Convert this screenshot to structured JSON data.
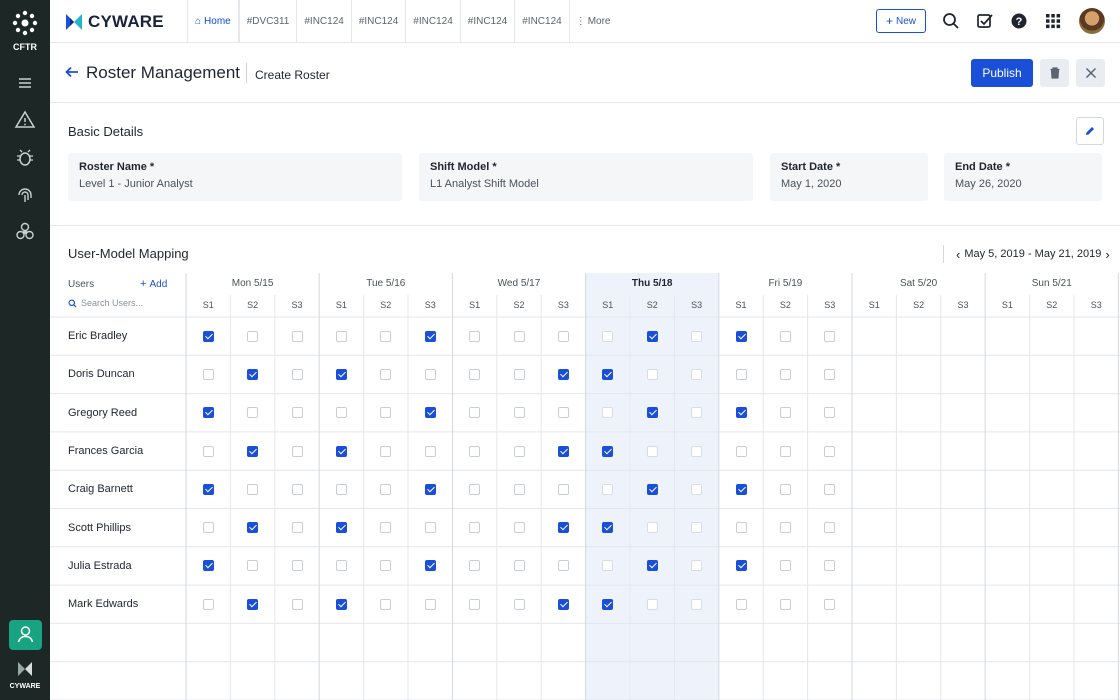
{
  "rail": {
    "org_label": "CFTR",
    "brand_label": "CYWARE",
    "icons": [
      "menu-icon",
      "alert-icon",
      "bug-icon",
      "fingerprint-icon",
      "biohazard-icon",
      "user-icon"
    ]
  },
  "topbar": {
    "brand": "CYWARE",
    "tabs": [
      {
        "label": "Home",
        "active": true
      },
      {
        "label": "#DVC311",
        "active": false
      },
      {
        "label": "#INC124",
        "active": false
      },
      {
        "label": "#INC124",
        "active": false
      },
      {
        "label": "#INC124",
        "active": false
      },
      {
        "label": "#INC124",
        "active": false
      },
      {
        "label": "#INC124",
        "active": false
      }
    ],
    "more_label": "More",
    "new_label": "New"
  },
  "header": {
    "title": "Roster Management",
    "subtitle": "Create Roster",
    "publish_label": "Publish"
  },
  "basic_details": {
    "title": "Basic Details",
    "fields": [
      {
        "label": "Roster Name *",
        "value": "Level 1 - Junior Analyst"
      },
      {
        "label": "Shift Model *",
        "value": "L1 Analyst Shift Model"
      },
      {
        "label": "Start Date *",
        "value": "May 1, 2020"
      },
      {
        "label": "End Date *",
        "value": "May 26, 2020"
      }
    ]
  },
  "mapping": {
    "title": "User-Model Mapping",
    "range": "May 5, 2019 - May 21, 2019",
    "users_label": "Users",
    "add_label": "Add",
    "search_placeholder": "Search Users...",
    "shifts": [
      "S1",
      "S2",
      "S3"
    ],
    "days": [
      {
        "label": "Mon 5/15",
        "today": false
      },
      {
        "label": "Tue 5/16",
        "today": false
      },
      {
        "label": "Wed 5/17",
        "today": false
      },
      {
        "label": "Thu 5/18",
        "today": true
      },
      {
        "label": "Fri 5/19",
        "today": false
      },
      {
        "label": "Sat 5/20",
        "today": false
      },
      {
        "label": "Sun 5/21",
        "today": false
      }
    ],
    "users": [
      {
        "name": "Eric Bradley",
        "checks": [
          1,
          0,
          0,
          0,
          0,
          1,
          0,
          0,
          0,
          0,
          1,
          0,
          1,
          0,
          0
        ]
      },
      {
        "name": "Doris Duncan",
        "checks": [
          0,
          1,
          0,
          1,
          0,
          0,
          0,
          0,
          1,
          1,
          0,
          0,
          0,
          0,
          0
        ]
      },
      {
        "name": "Gregory Reed",
        "checks": [
          1,
          0,
          0,
          0,
          0,
          1,
          0,
          0,
          0,
          0,
          1,
          0,
          1,
          0,
          0
        ]
      },
      {
        "name": "Frances Garcia",
        "checks": [
          0,
          1,
          0,
          1,
          0,
          0,
          0,
          0,
          1,
          1,
          0,
          0,
          0,
          0,
          0
        ]
      },
      {
        "name": "Craig Barnett",
        "checks": [
          1,
          0,
          0,
          0,
          0,
          1,
          0,
          0,
          0,
          0,
          1,
          0,
          1,
          0,
          0
        ]
      },
      {
        "name": "Scott Phillips",
        "checks": [
          0,
          1,
          0,
          1,
          0,
          0,
          0,
          0,
          1,
          1,
          0,
          0,
          0,
          0,
          0
        ]
      },
      {
        "name": "Julia Estrada",
        "checks": [
          1,
          0,
          0,
          0,
          0,
          1,
          0,
          0,
          0,
          0,
          1,
          0,
          1,
          0,
          0
        ]
      },
      {
        "name": "Mark Edwards",
        "checks": [
          0,
          1,
          0,
          1,
          0,
          0,
          0,
          0,
          1,
          1,
          0,
          0,
          0,
          0,
          0
        ]
      }
    ]
  },
  "colors": {
    "accent": "#1a4fd8",
    "rail": "#1c2726",
    "rail_active": "#18a381",
    "today_column": "#eef3fb"
  }
}
